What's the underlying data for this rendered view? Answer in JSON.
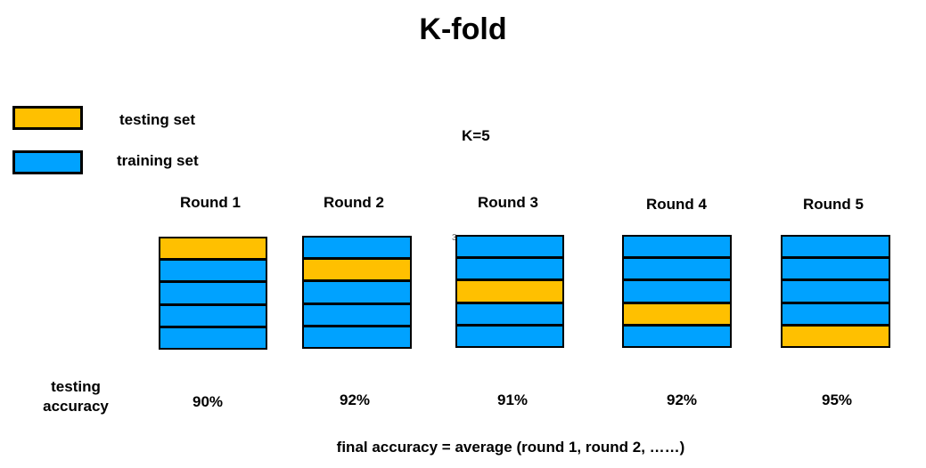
{
  "title": "K-fold",
  "legend": {
    "testing": {
      "label": "testing set",
      "color": "#FFC000"
    },
    "training": {
      "label": "training set",
      "color": "#00A2FF"
    }
  },
  "k_label": "K=5",
  "stray_mark": "3",
  "rounds": [
    {
      "label": "Round 1",
      "test_fold": 1,
      "accuracy": "90%"
    },
    {
      "label": "Round 2",
      "test_fold": 2,
      "accuracy": "92%"
    },
    {
      "label": "Round 3",
      "test_fold": 3,
      "accuracy": "91%"
    },
    {
      "label": "Round 4",
      "test_fold": 4,
      "accuracy": "92%"
    },
    {
      "label": "Round 5",
      "test_fold": 5,
      "accuracy": "95%"
    }
  ],
  "accuracy_title_line1": "testing",
  "accuracy_title_line2": "accuracy",
  "final_text": "final accuracy = average (round 1, round 2, ……)"
}
